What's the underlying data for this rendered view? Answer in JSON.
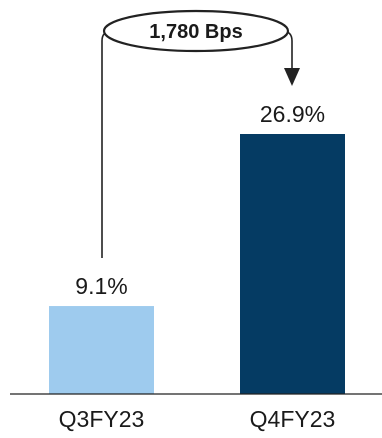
{
  "chart_data": {
    "type": "bar",
    "categories": [
      "Q3FY23",
      "Q4FY23"
    ],
    "values": [
      9.1,
      26.9
    ],
    "value_labels": [
      "9.1%",
      "26.9%"
    ],
    "colors": [
      "#9ecbee",
      "#053b63"
    ],
    "ylim": [
      0,
      30
    ],
    "grid": false,
    "annotation": {
      "text": "1,780 Bps",
      "from": "Q3FY23",
      "to": "Q4FY23"
    }
  }
}
